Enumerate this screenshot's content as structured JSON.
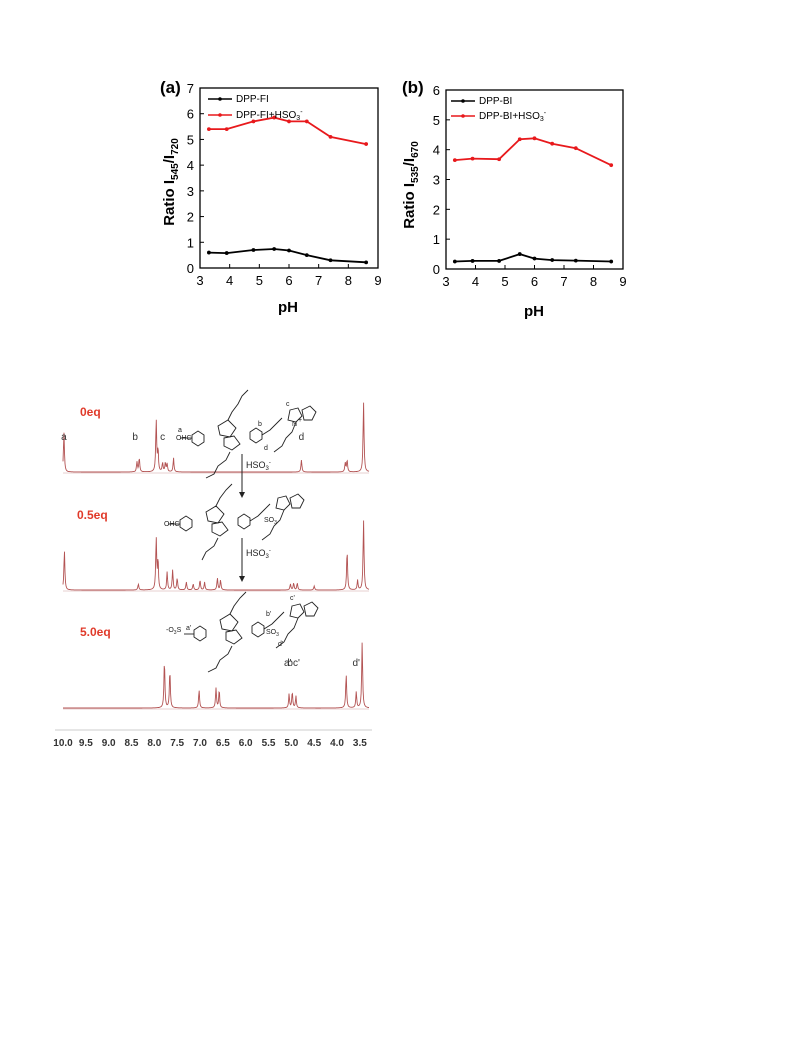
{
  "colors": {
    "black_series": "#000000",
    "red_series": "#e8191c",
    "spectrum": "#b35353",
    "eq_label": "#e03a2a"
  },
  "chart_data": [
    {
      "type": "line",
      "panel": "(a)",
      "xlabel": "pH",
      "ylabel": "Ratio I",
      "ylabel_sub1": "545",
      "ylabel_sep": "/I",
      "ylabel_sub2": "720",
      "xlim": [
        3,
        9
      ],
      "ylim": [
        0,
        7
      ],
      "xticks": [
        3,
        4,
        5,
        6,
        7,
        8,
        9
      ],
      "yticks": [
        0,
        1,
        2,
        3,
        4,
        5,
        6,
        7
      ],
      "legend_position": "top-left",
      "series": [
        {
          "name": "DPP-FI",
          "name_sup": "",
          "color": "#000000",
          "x": [
            3.3,
            3.9,
            4.8,
            5.5,
            6.0,
            6.6,
            7.4,
            8.6
          ],
          "y": [
            0.6,
            0.58,
            0.7,
            0.74,
            0.68,
            0.5,
            0.3,
            0.22
          ]
        },
        {
          "name": "DPP-FI+HSO",
          "name_sub": "3",
          "name_sup": "-",
          "color": "#e8191c",
          "x": [
            3.3,
            3.9,
            4.8,
            5.5,
            6.0,
            6.6,
            7.4,
            8.6
          ],
          "y": [
            5.4,
            5.4,
            5.7,
            5.85,
            5.7,
            5.7,
            5.1,
            4.82
          ]
        }
      ]
    },
    {
      "type": "line",
      "panel": "(b)",
      "xlabel": "pH",
      "ylabel": "Ratio I",
      "ylabel_sub1": "535",
      "ylabel_sep": "/I",
      "ylabel_sub2": "670",
      "xlim": [
        3,
        9
      ],
      "ylim": [
        0,
        6
      ],
      "xticks": [
        3,
        4,
        5,
        6,
        7,
        8,
        9
      ],
      "yticks": [
        0,
        1,
        2,
        3,
        4,
        5,
        6
      ],
      "legend_position": "top-left",
      "series": [
        {
          "name": "DPP-BI",
          "name_sup": "",
          "color": "#000000",
          "x": [
            3.3,
            3.9,
            4.8,
            5.5,
            6.0,
            6.6,
            7.4,
            8.6
          ],
          "y": [
            0.25,
            0.27,
            0.27,
            0.5,
            0.35,
            0.3,
            0.28,
            0.25
          ]
        },
        {
          "name": "DPP-BI+HSO",
          "name_sub": "3",
          "name_sup": "-",
          "color": "#e8191c",
          "x": [
            3.3,
            3.9,
            4.8,
            5.5,
            6.0,
            6.6,
            7.4,
            8.6
          ],
          "y": [
            3.65,
            3.7,
            3.68,
            4.35,
            4.38,
            4.2,
            4.05,
            3.48
          ]
        }
      ]
    },
    {
      "type": "line",
      "subtype": "nmr-stack",
      "xlim": [
        10.0,
        3.3
      ],
      "xticks": [
        "10.0",
        "9.5",
        "9.0",
        "8.5",
        "8.0",
        "7.5",
        "7.0",
        "6.5",
        "6.0",
        "5.5",
        "5.0",
        "4.5",
        "4.0",
        "3.5"
      ],
      "traces": [
        {
          "label": "0eq",
          "peaks": [
            [
              9.98,
              40
            ],
            [
              8.38,
              10
            ],
            [
              8.33,
              14
            ],
            [
              7.96,
              52
            ],
            [
              7.92,
              22
            ],
            [
              7.82,
              9
            ],
            [
              7.76,
              9
            ],
            [
              7.72,
              8
            ],
            [
              7.58,
              14
            ],
            [
              4.78,
              12
            ],
            [
              3.82,
              9
            ],
            [
              3.78,
              12
            ],
            [
              3.42,
              70
            ]
          ],
          "labels": [
            {
              "t": "a",
              "x": 9.98
            },
            {
              "t": "b",
              "x": 8.42
            },
            {
              "t": "c",
              "x": 7.82
            },
            {
              "t": "d",
              "x": 4.78
            }
          ]
        },
        {
          "label": "0.5eq",
          "peaks": [
            [
              9.97,
              40
            ],
            [
              8.35,
              6
            ],
            [
              7.96,
              52
            ],
            [
              7.92,
              30
            ],
            [
              7.72,
              18
            ],
            [
              7.6,
              20
            ],
            [
              7.5,
              12
            ],
            [
              7.3,
              8
            ],
            [
              7.15,
              6
            ],
            [
              7.0,
              10
            ],
            [
              6.9,
              8
            ],
            [
              6.62,
              12
            ],
            [
              6.55,
              10
            ],
            [
              5.02,
              6
            ],
            [
              4.95,
              7
            ],
            [
              4.87,
              7
            ],
            [
              4.5,
              4
            ],
            [
              3.78,
              40
            ],
            [
              3.55,
              10
            ],
            [
              3.42,
              70
            ]
          ],
          "labels": []
        },
        {
          "label": "5.0eq",
          "peaks": [
            [
              7.78,
              48
            ],
            [
              7.66,
              38
            ],
            [
              7.02,
              18
            ],
            [
              6.65,
              20
            ],
            [
              6.58,
              18
            ],
            [
              5.05,
              14
            ],
            [
              4.98,
              16
            ],
            [
              4.9,
              12
            ],
            [
              3.8,
              34
            ],
            [
              3.58,
              16
            ],
            [
              3.45,
              66
            ]
          ],
          "labels": [
            {
              "t": "a'",
              "x": 5.08
            },
            {
              "t": "bc'",
              "x": 4.95
            },
            {
              "t": "d'",
              "x": 3.58
            }
          ]
        }
      ],
      "reagent": "HSO",
      "reagent_sub": "3",
      "reagent_sup": "-",
      "struct_labels": {
        "top": [
          "a",
          "OHC",
          "c",
          "b",
          "d",
          "N",
          "+"
        ],
        "mid": [
          "OHC",
          "SO",
          "3"
        ],
        "bot": [
          "-O",
          "3",
          "S",
          "a'",
          "c'",
          "b'",
          "d'",
          "SO",
          "3"
        ]
      }
    }
  ]
}
